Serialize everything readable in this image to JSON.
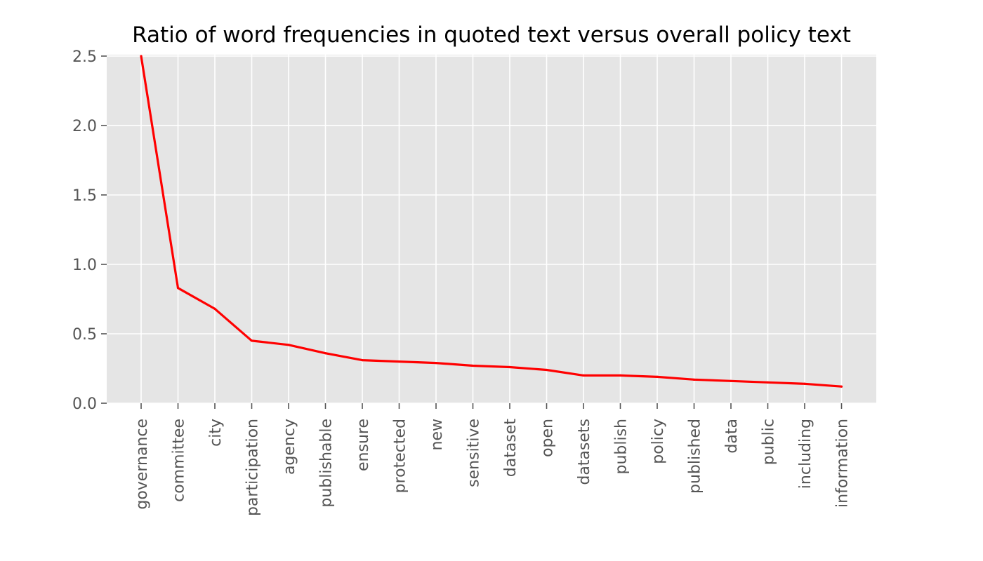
{
  "chart_data": {
    "type": "line",
    "title": "Ratio of word frequencies in quoted text versus overall policy text",
    "xlabel": "",
    "ylabel": "",
    "categories": [
      "governance",
      "committee",
      "city",
      "participation",
      "agency",
      "publishable",
      "ensure",
      "protected",
      "new",
      "sensitive",
      "dataset",
      "open",
      "datasets",
      "publish",
      "policy",
      "published",
      "data",
      "public",
      "including",
      "information"
    ],
    "values": [
      2.5,
      0.83,
      0.68,
      0.45,
      0.42,
      0.36,
      0.31,
      0.3,
      0.29,
      0.27,
      0.26,
      0.24,
      0.2,
      0.2,
      0.19,
      0.17,
      0.16,
      0.15,
      0.14,
      0.12
    ],
    "ylim": [
      0,
      2.5
    ],
    "yticks": [
      "0.0",
      "0.5",
      "1.0",
      "1.5",
      "2.0",
      "2.5"
    ],
    "grid": true,
    "style": "ggplot",
    "colors": {
      "line": "#ff0000",
      "background": "#e5e5e5",
      "grid": "#ffffff"
    }
  }
}
